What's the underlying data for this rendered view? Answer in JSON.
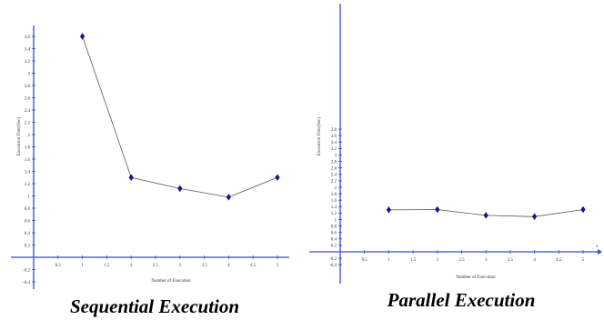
{
  "colors": {
    "axis": "#3b4cc0",
    "line": "#555555",
    "marker": "#0a1a8c"
  },
  "chart_data": [
    {
      "type": "line",
      "caption": "Sequential Execution",
      "xlabel": "Number of Execution",
      "ylabel": "Execution Time(Sec)",
      "xlim": [
        0,
        5.2
      ],
      "ylim": [
        -0.4,
        3.8
      ],
      "xticks": [
        "0.5",
        "1",
        "1.5",
        "2",
        "2.5",
        "3",
        "3.5",
        "4",
        "4.5",
        "5"
      ],
      "yticks": [
        "-0.4",
        "-0.2",
        "0.2",
        "0.4",
        "0.6",
        "0.8",
        "1",
        "1.2",
        "1.4",
        "1.6",
        "1.8",
        "2",
        "2.2",
        "2.4",
        "2.6",
        "2.8",
        "3",
        "3.2",
        "3.4",
        "3.6"
      ],
      "x": [
        1,
        2,
        3,
        4,
        5
      ],
      "y": [
        3.6,
        1.3,
        1.12,
        0.98,
        1.3
      ],
      "axis_end_label": ""
    },
    {
      "type": "line",
      "caption": "Parallel Execution",
      "xlabel": "Number of Execution",
      "ylabel": "Execution Time(Sec)",
      "xlim": [
        0,
        5.2
      ],
      "ylim": [
        -0.4,
        3.8
      ],
      "xticks": [
        "0.5",
        "1",
        "1.5",
        "2",
        "2.5",
        "3",
        "3.5",
        "4",
        "4.5",
        "5"
      ],
      "yticks": [
        "-0.4",
        "-0.2",
        "0.2",
        "0.4",
        "0.6",
        "0.8",
        "1",
        "1.2",
        "1.4",
        "1.6",
        "1.8",
        "2",
        "2.2",
        "2.4",
        "2.6",
        "2.8",
        "3",
        "3.2",
        "3.4",
        "3.6",
        "3.8"
      ],
      "x": [
        1,
        2,
        3,
        4,
        5
      ],
      "y": [
        1.3,
        1.31,
        1.13,
        1.09,
        1.31
      ],
      "axis_end_label": "x"
    }
  ]
}
